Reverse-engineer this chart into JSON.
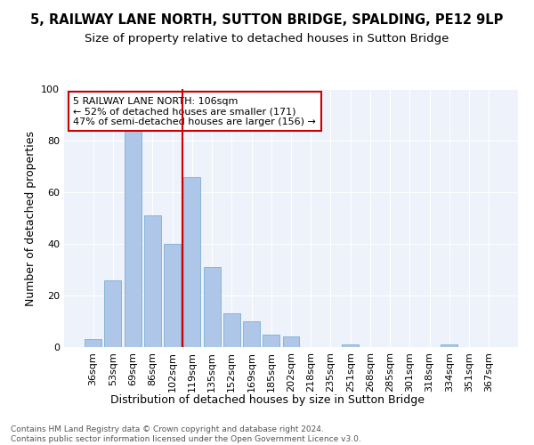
{
  "title": "5, RAILWAY LANE NORTH, SUTTON BRIDGE, SPALDING, PE12 9LP",
  "subtitle": "Size of property relative to detached houses in Sutton Bridge",
  "xlabel": "Distribution of detached houses by size in Sutton Bridge",
  "ylabel": "Number of detached properties",
  "categories": [
    "36sqm",
    "53sqm",
    "69sqm",
    "86sqm",
    "102sqm",
    "119sqm",
    "135sqm",
    "152sqm",
    "169sqm",
    "185sqm",
    "202sqm",
    "218sqm",
    "235sqm",
    "251sqm",
    "268sqm",
    "285sqm",
    "301sqm",
    "318sqm",
    "334sqm",
    "351sqm",
    "367sqm"
  ],
  "values": [
    3,
    26,
    84,
    51,
    40,
    66,
    31,
    13,
    10,
    5,
    4,
    0,
    0,
    1,
    0,
    0,
    0,
    0,
    1,
    0,
    0
  ],
  "bar_color": "#aec6e8",
  "bar_edge_color": "#7bafd4",
  "vline_x_index": 4.5,
  "vline_color": "#cc0000",
  "annotation_text": "5 RAILWAY LANE NORTH: 106sqm\n← 52% of detached houses are smaller (171)\n47% of semi-detached houses are larger (156) →",
  "annotation_box_color": "#cc0000",
  "ylim": [
    0,
    100
  ],
  "yticks": [
    0,
    20,
    40,
    60,
    80,
    100
  ],
  "background_color": "#eef2fa",
  "footer_text": "Contains HM Land Registry data © Crown copyright and database right 2024.\nContains public sector information licensed under the Open Government Licence v3.0.",
  "title_fontsize": 10.5,
  "subtitle_fontsize": 9.5,
  "ylabel_fontsize": 9,
  "xlabel_fontsize": 9,
  "tick_fontsize": 8,
  "footer_fontsize": 6.5
}
